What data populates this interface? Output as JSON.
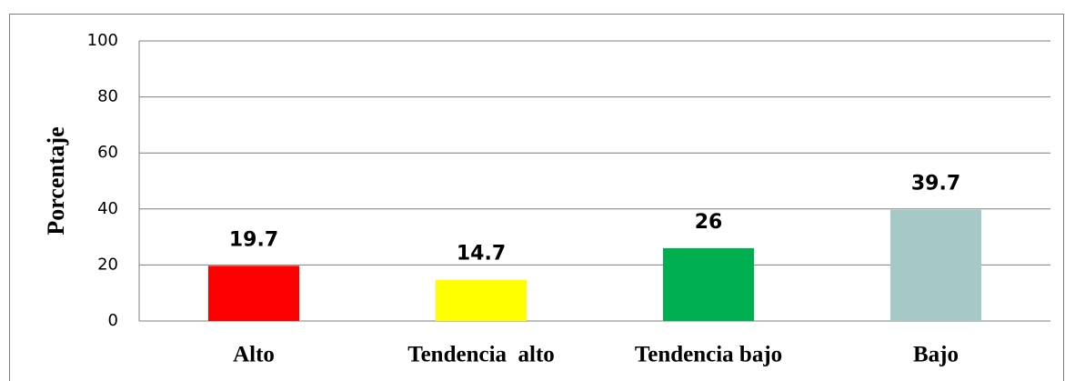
{
  "chart_data": {
    "type": "bar",
    "y_label": "Porcentaje",
    "categories": [
      "Alto",
      "Tendencia  alto",
      "Tendencia bajo",
      "Bajo"
    ],
    "values": [
      19.7,
      14.7,
      26,
      39.7
    ],
    "colors": [
      "#ff0000",
      "#ffff00",
      "#00b050",
      "#a5c9c7"
    ],
    "ylim": [
      0,
      100
    ],
    "yticks": [
      0,
      20,
      40,
      60,
      80,
      100
    ],
    "grid": true
  }
}
